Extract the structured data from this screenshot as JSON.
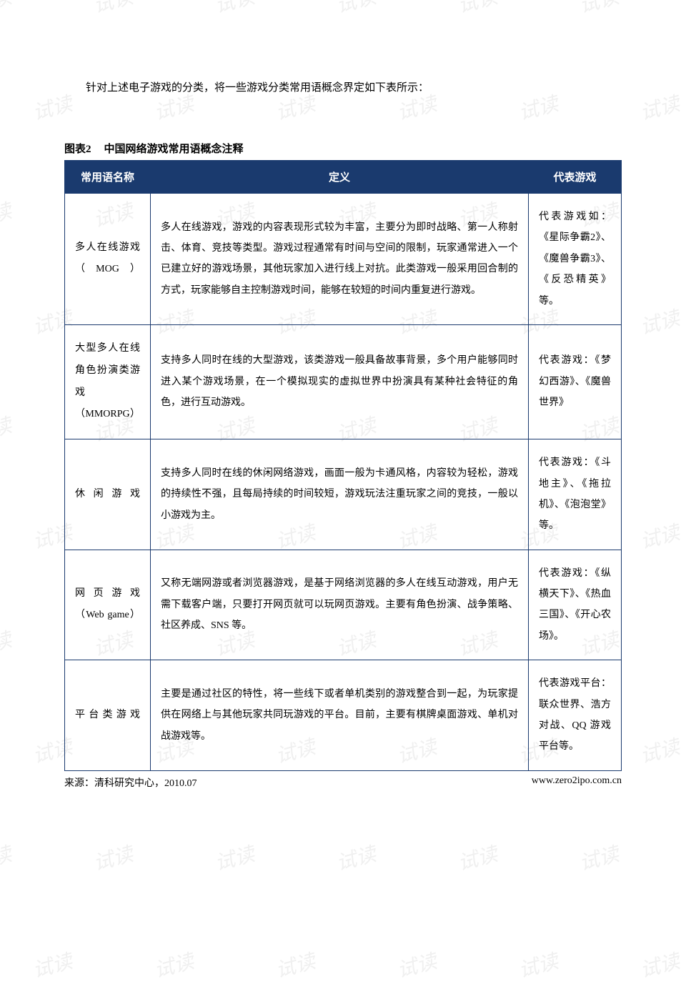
{
  "watermark_text": "试读",
  "intro": "针对上述电子游戏的分类，将一些游戏分类常用语概念界定如下表所示：",
  "caption_num": "图表2",
  "caption_title": "中国网络游戏常用语概念注释",
  "table": {
    "header_bg": "#1a3a6e",
    "header_fg": "#ffffff",
    "border_color": "#1a3a6e",
    "columns": [
      {
        "key": "name",
        "label": "常用语名称",
        "width": 120
      },
      {
        "key": "def",
        "label": "定义"
      },
      {
        "key": "rep",
        "label": "代表游戏",
        "width": 130
      }
    ],
    "rows": [
      {
        "name": "多人在线游戏（MOG）",
        "def": "多人在线游戏，游戏的内容表现形式较为丰富，主要分为即时战略、第一人称射击、体育、竞技等类型。游戏过程通常有时间与空间的限制，玩家通常进入一个已建立好的游戏场景，其他玩家加入进行线上对抗。此类游戏一般采用回合制的方式，玩家能够自主控制游戏时间，能够在较短的时间内重复进行游戏。",
        "rep": "代表游戏如：《星际争霸2》、《魔兽争霸3》、《反恐精英》等。"
      },
      {
        "name": "大型多人在线角色扮演类游戏（MMORPG）",
        "def": "支持多人同时在线的大型游戏，该类游戏一般具备故事背景，多个用户能够同时进入某个游戏场景，在一个模拟现实的虚拟世界中扮演具有某种社会特征的角色，进行互动游戏。",
        "rep": "代表游戏：《梦幻西游》、《魔兽世界》"
      },
      {
        "name": "休闲游戏",
        "def": "支持多人同时在线的休闲网络游戏，画面一般为卡通风格，内容较为轻松，游戏的持续性不强，且每局持续的时间较短，游戏玩法注重玩家之间的竞技，一般以小游戏为主。",
        "rep": "代表游戏：《斗地主》、《拖拉机》、《泡泡堂》等。"
      },
      {
        "name": "网页游戏（Web game）",
        "def": "又称无端网游或者浏览器游戏，是基于网络浏览器的多人在线互动游戏，用户无需下载客户端，只要打开网页就可以玩网页游戏。主要有角色扮演、战争策略、社区养成、SNS 等。",
        "rep": "代表游戏：《纵横天下》、《热血三国》、《开心农场》。"
      },
      {
        "name": "平台类游戏",
        "def": "主要是通过社区的特性，将一些线下或者单机类别的游戏整合到一起，为玩家提供在网络上与其他玩家共同玩游戏的平台。目前，主要有棋牌桌面游戏、单机对战游戏等。",
        "rep": "代表游戏平台：联众世界、浩方对战、QQ 游戏平台等。"
      }
    ]
  },
  "footer_left": "来源：清科研究中心，2010.07",
  "footer_right": "www.zero2ipo.com.cn"
}
